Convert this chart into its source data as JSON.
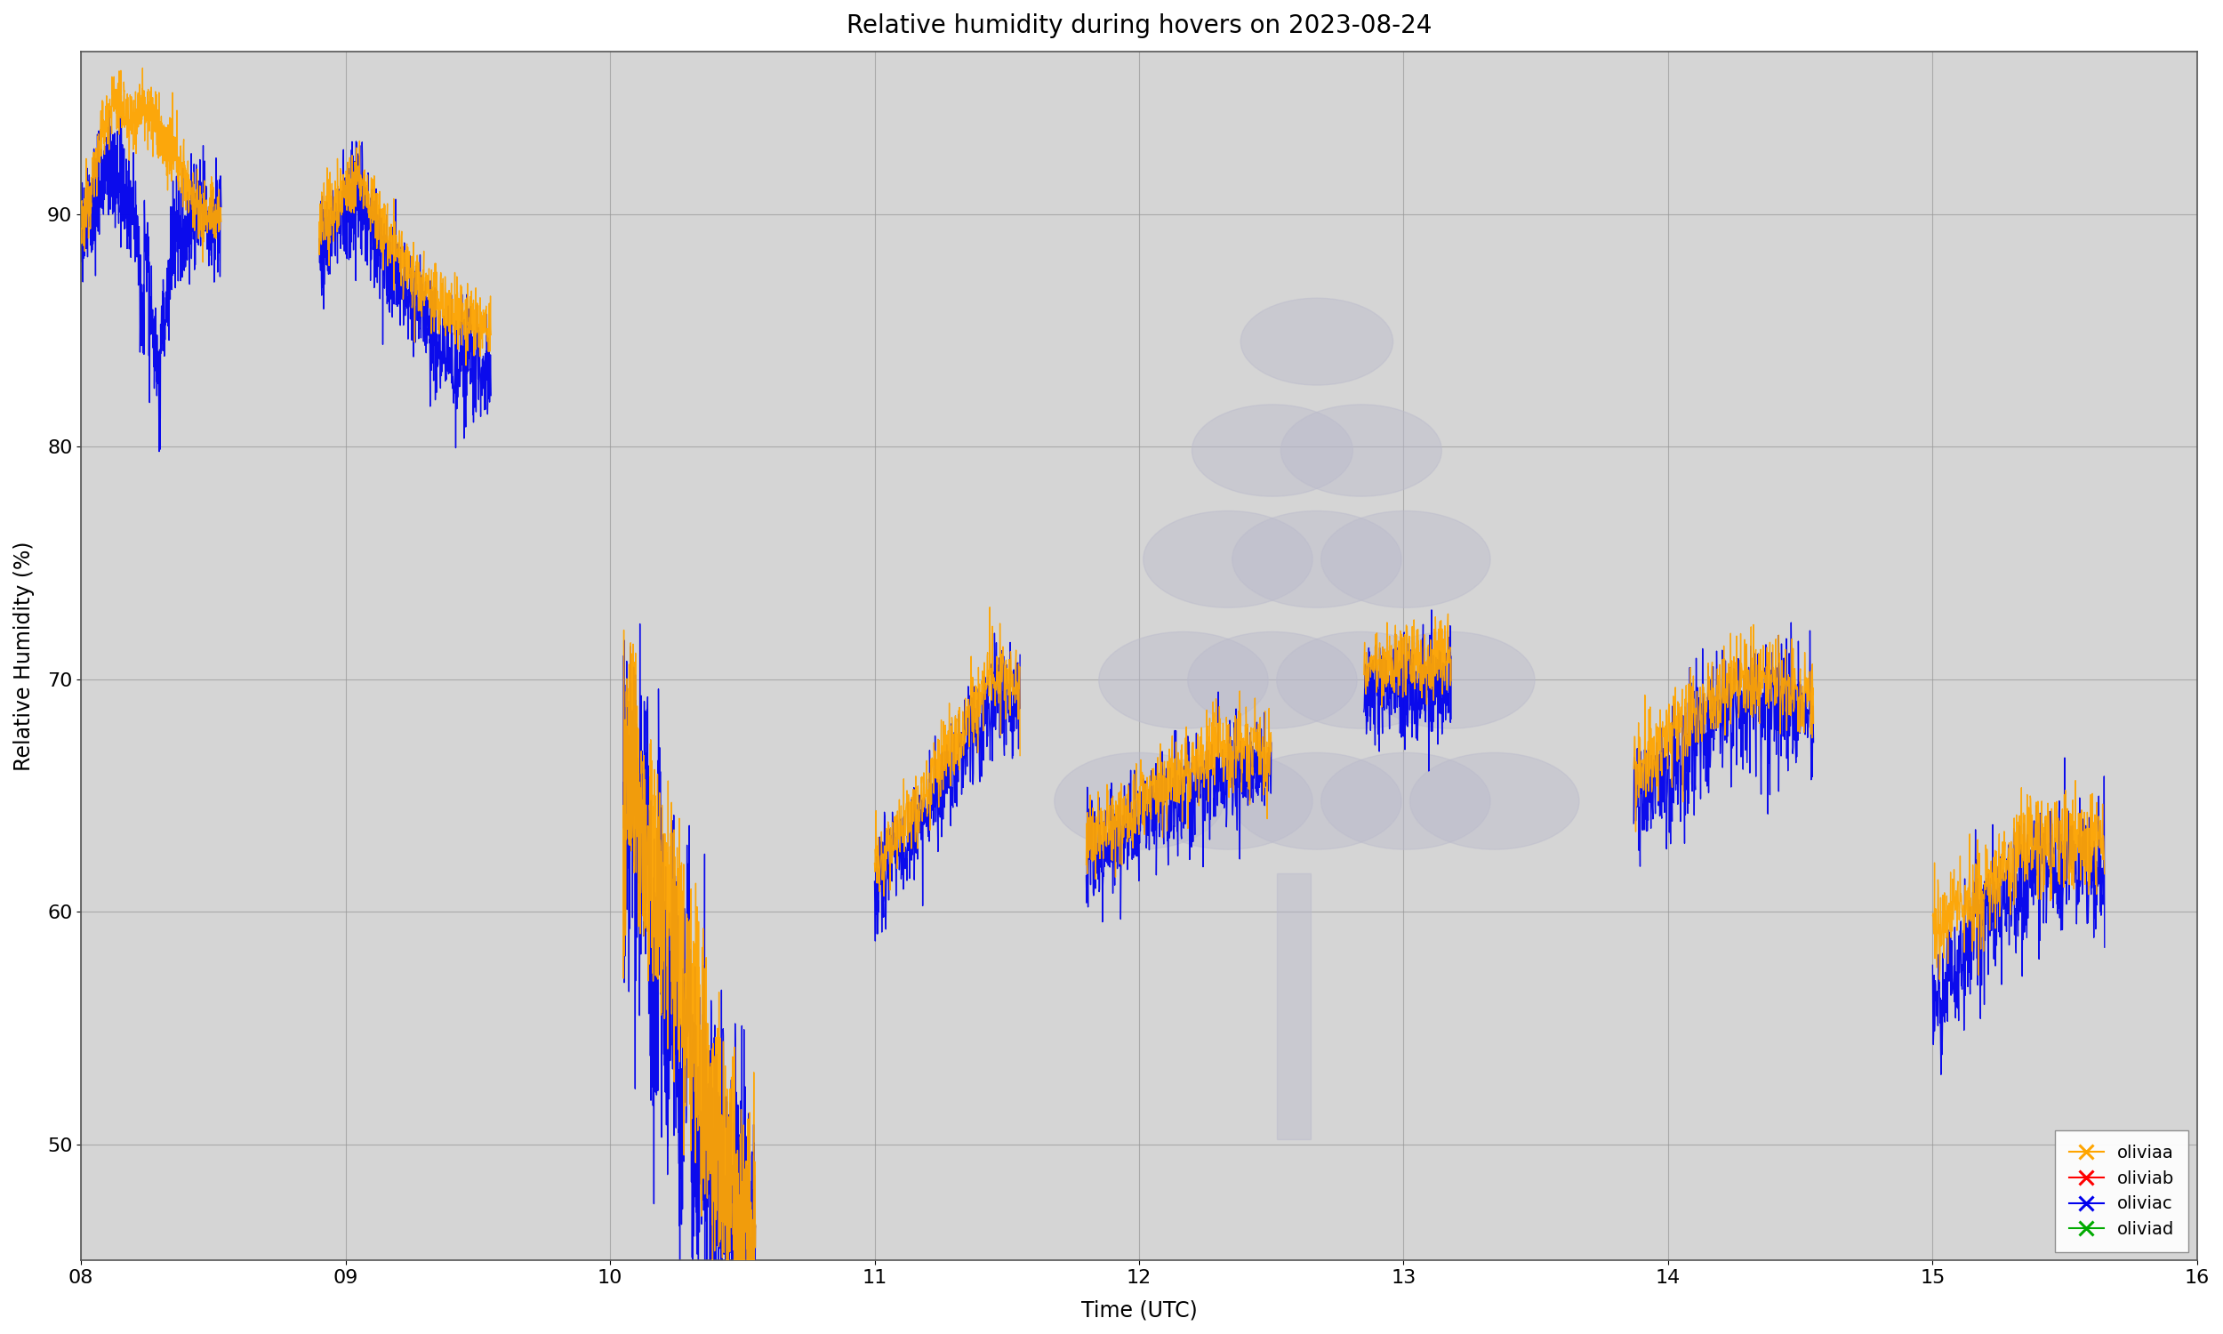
{
  "title": "Relative humidity during hovers on 2023-08-24",
  "xlabel": "Time (UTC)",
  "ylabel": "Relative Humidity (%)",
  "xlim": [
    8.0,
    16.0
  ],
  "ylim": [
    45,
    97
  ],
  "yticks": [
    50,
    60,
    70,
    80,
    90
  ],
  "xticks": [
    8,
    9,
    10,
    11,
    12,
    13,
    14,
    15,
    16
  ],
  "background_color": "#d5d5d5",
  "figure_bg": "#ffffff",
  "grid_color": "#999999",
  "series": [
    {
      "name": "oliviaa",
      "color": "#FFA500",
      "zorder": 3
    },
    {
      "name": "oliviab",
      "color": "#FF0000",
      "zorder": 4
    },
    {
      "name": "oliviac",
      "color": "#0000EE",
      "zorder": 2
    },
    {
      "name": "oliviad",
      "color": "#00AA00",
      "zorder": 5
    }
  ],
  "watermark_color": "#bbbbcc",
  "watermark_alpha": 0.45
}
